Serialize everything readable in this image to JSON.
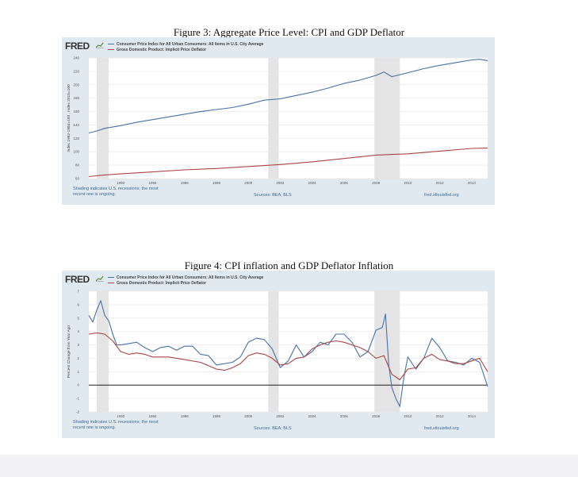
{
  "figures": [
    {
      "title": "Figure 3: Aggregate Price Level: CPI and GDP Deflator",
      "logo": "FRED",
      "legend": [
        {
          "label": "Consumer Price Index for All Urban Consumers: All Items in U.S. City Average",
          "color": "#4572a7"
        },
        {
          "label": "Gross Domestic Product: Implicit Price Deflator",
          "color": "#aa4643"
        }
      ],
      "ylabel": "Index 1982-1984=100 , Index 2015=100",
      "footer_left_1": "Shading indicates U.S. recessions; the most",
      "footer_left_2": "recent one is ongoing.",
      "footer_sources": "Sources: BEA, BLS",
      "footer_url": "fred.stlouisfed.org"
    },
    {
      "title": "Figure 4: CPI inflation and GDP Deflator Inflation",
      "logo": "FRED",
      "legend": [
        {
          "label": "Consumer Price Index for All Urban Consumers: All Items in U.S. City Average",
          "color": "#4572a7"
        },
        {
          "label": "Gross Domestic Product: Implicit Price Deflator",
          "color": "#aa4643"
        }
      ],
      "ylabel": "Percent Change from Year Ago",
      "footer_left_1": "Shading indicates U.S. recessions; the most",
      "footer_left_2": "recent one is ongoing.",
      "footer_sources": "Sources: BEA, BLS",
      "footer_url": "fred.stlouisfed.org"
    }
  ],
  "chart_data": [
    {
      "type": "line",
      "title": "Figure 3: Aggregate Price Level: CPI and GDP Deflator",
      "xlabel": "",
      "ylabel": "Index 1982-1984=100 , Index 2015=100",
      "xlim": [
        1990.0,
        2015.0
      ],
      "ylim": [
        60,
        240
      ],
      "xticks": [
        1992,
        1994,
        1996,
        1998,
        2000,
        2002,
        2004,
        2006,
        2008,
        2010,
        2012,
        2014
      ],
      "yticks": [
        60,
        80,
        100,
        120,
        140,
        160,
        180,
        200,
        220,
        240
      ],
      "recessions": [
        [
          1990.5,
          1991.25
        ],
        [
          2001.25,
          2001.9
        ],
        [
          2007.9,
          2009.5
        ]
      ],
      "series": [
        {
          "name": "Consumer Price Index for All Urban Consumers: All Items in U.S. City Average",
          "color": "#4572a7",
          "x": [
            1990.0,
            1990.5,
            1991.0,
            1992.0,
            1993.0,
            1994.0,
            1995.0,
            1996.0,
            1997.0,
            1998.0,
            1999.0,
            2000.0,
            2001.0,
            2002.0,
            2003.0,
            2004.0,
            2005.0,
            2006.0,
            2007.0,
            2008.0,
            2008.5,
            2009.0,
            2010.0,
            2011.0,
            2012.0,
            2013.0,
            2014.0,
            2014.5,
            2015.0
          ],
          "values": [
            128,
            131,
            135,
            139,
            144,
            148,
            152,
            156,
            160,
            163,
            166,
            171,
            177,
            179,
            184,
            189,
            195,
            202,
            207,
            214,
            219,
            212,
            218,
            224,
            229,
            233,
            237,
            238,
            236
          ]
        },
        {
          "name": "Gross Domestic Product: Implicit Price Deflator",
          "color": "#aa4643",
          "x": [
            1990.0,
            1991.0,
            1992.0,
            1994.0,
            1996.0,
            1998.0,
            2000.0,
            2002.0,
            2004.0,
            2006.0,
            2008.0,
            2009.0,
            2010.0,
            2012.0,
            2014.0,
            2015.0
          ],
          "values": [
            63,
            65.5,
            67,
            70,
            73,
            75,
            78,
            81,
            85,
            90,
            95,
            96,
            97,
            101,
            105,
            105.5
          ]
        }
      ]
    },
    {
      "type": "line",
      "title": "Figure 4: CPI inflation and GDP Deflator Inflation",
      "xlabel": "",
      "ylabel": "Percent Change from Year Ago",
      "xlim": [
        1990.0,
        2015.0
      ],
      "ylim": [
        -2,
        7
      ],
      "xticks": [
        1992,
        1994,
        1996,
        1998,
        2000,
        2002,
        2004,
        2006,
        2008,
        2010,
        2012,
        2014
      ],
      "yticks": [
        -2,
        -1,
        0,
        1,
        2,
        3,
        4,
        5,
        6,
        7
      ],
      "recessions": [
        [
          1990.5,
          1991.25
        ],
        [
          2001.25,
          2001.9
        ],
        [
          2007.9,
          2009.5
        ]
      ],
      "series": [
        {
          "name": "Consumer Price Index for All Urban Consumers: All Items in U.S. City Average",
          "color": "#4572a7",
          "x": [
            1990.0,
            1990.25,
            1990.5,
            1990.75,
            1991.0,
            1991.25,
            1991.5,
            1991.75,
            1992.0,
            1992.5,
            1993.0,
            1993.5,
            1994.0,
            1994.5,
            1995.0,
            1995.5,
            1996.0,
            1996.5,
            1997.0,
            1997.5,
            1998.0,
            1998.5,
            1999.0,
            1999.5,
            2000.0,
            2000.5,
            2001.0,
            2001.5,
            2002.0,
            2002.5,
            2003.0,
            2003.5,
            2004.0,
            2004.5,
            2005.0,
            2005.5,
            2006.0,
            2006.5,
            2007.0,
            2007.5,
            2008.0,
            2008.4,
            2008.6,
            2008.8,
            2009.0,
            2009.25,
            2009.5,
            2009.75,
            2010.0,
            2010.5,
            2011.0,
            2011.5,
            2012.0,
            2012.5,
            2013.0,
            2013.5,
            2014.0,
            2014.5,
            2015.0
          ],
          "values": [
            5.2,
            4.7,
            5.6,
            6.3,
            5.2,
            4.8,
            3.8,
            3.0,
            3.0,
            3.1,
            3.2,
            2.8,
            2.5,
            2.8,
            2.9,
            2.6,
            2.9,
            2.9,
            2.3,
            2.2,
            1.5,
            1.6,
            1.7,
            2.1,
            3.2,
            3.5,
            3.4,
            2.7,
            1.3,
            1.8,
            3.0,
            2.1,
            2.5,
            3.2,
            3.0,
            3.8,
            3.8,
            3.2,
            2.1,
            2.5,
            4.1,
            4.3,
            5.3,
            1.5,
            -0.2,
            -1.0,
            -1.6,
            0.6,
            2.1,
            1.2,
            2.0,
            3.5,
            2.8,
            1.8,
            1.7,
            1.5,
            2.0,
            1.7,
            -0.1
          ]
        },
        {
          "name": "Gross Domestic Product: Implicit Price Deflator",
          "color": "#aa4643",
          "x": [
            1990.0,
            1990.5,
            1991.0,
            1991.5,
            1992.0,
            1992.5,
            1993.0,
            1993.5,
            1994.0,
            1995.0,
            1996.0,
            1997.0,
            1998.0,
            1998.5,
            1999.0,
            1999.5,
            2000.0,
            2000.5,
            2001.0,
            2001.5,
            2002.0,
            2002.5,
            2003.0,
            2003.5,
            2004.0,
            2004.5,
            2005.0,
            2005.5,
            2006.0,
            2006.5,
            2007.0,
            2007.5,
            2008.0,
            2008.5,
            2009.0,
            2009.5,
            2010.0,
            2010.5,
            2011.0,
            2011.5,
            2012.0,
            2012.5,
            2013.0,
            2013.5,
            2014.0,
            2014.5,
            2015.0
          ],
          "values": [
            3.8,
            3.9,
            3.8,
            3.3,
            2.5,
            2.3,
            2.4,
            2.3,
            2.1,
            2.1,
            1.9,
            1.7,
            1.2,
            1.1,
            1.3,
            1.6,
            2.2,
            2.4,
            2.3,
            2.0,
            1.5,
            1.6,
            2.0,
            2.1,
            2.7,
            3.0,
            3.2,
            3.3,
            3.2,
            3.0,
            2.8,
            2.5,
            2.0,
            2.2,
            0.8,
            0.4,
            1.2,
            1.3,
            2.0,
            2.3,
            1.9,
            1.8,
            1.6,
            1.6,
            1.8,
            2.0,
            1.0
          ]
        }
      ]
    }
  ]
}
